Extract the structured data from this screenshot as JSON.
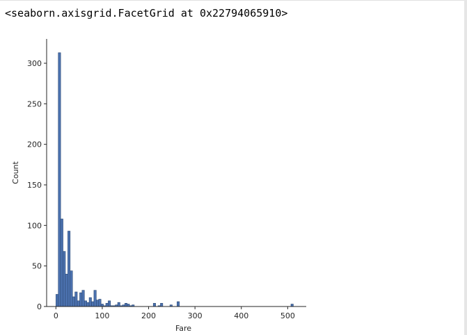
{
  "output": {
    "repr_text": "<seaborn.axisgrid.FacetGrid at 0x22794065910>"
  },
  "colors": {
    "bar_fill": "#4c72b0",
    "bar_edge": "#2d4a73",
    "axis": "#262626"
  },
  "chart_data": {
    "type": "bar",
    "title": "",
    "xlabel": "Fare",
    "ylabel": "Count",
    "xlim": [
      -20,
      540
    ],
    "ylim": [
      0,
      330
    ],
    "xticks": [
      0,
      100,
      200,
      300,
      400,
      500
    ],
    "yticks": [
      0,
      50,
      100,
      150,
      200,
      250,
      300
    ],
    "bin_width": 5.12,
    "grid": false,
    "bins": [
      {
        "x": 0.0,
        "count": 15
      },
      {
        "x": 5.12,
        "count": 313
      },
      {
        "x": 10.25,
        "count": 108
      },
      {
        "x": 15.37,
        "count": 68
      },
      {
        "x": 20.49,
        "count": 40
      },
      {
        "x": 25.62,
        "count": 93
      },
      {
        "x": 30.74,
        "count": 44
      },
      {
        "x": 35.86,
        "count": 12
      },
      {
        "x": 40.99,
        "count": 18
      },
      {
        "x": 46.11,
        "count": 7
      },
      {
        "x": 51.23,
        "count": 17
      },
      {
        "x": 56.36,
        "count": 20
      },
      {
        "x": 61.48,
        "count": 7
      },
      {
        "x": 66.6,
        "count": 5
      },
      {
        "x": 71.73,
        "count": 11
      },
      {
        "x": 76.85,
        "count": 6
      },
      {
        "x": 81.97,
        "count": 20
      },
      {
        "x": 87.1,
        "count": 8
      },
      {
        "x": 92.22,
        "count": 9
      },
      {
        "x": 97.34,
        "count": 3
      },
      {
        "x": 102.47,
        "count": 1
      },
      {
        "x": 107.59,
        "count": 4
      },
      {
        "x": 112.71,
        "count": 7
      },
      {
        "x": 117.84,
        "count": 1
      },
      {
        "x": 122.96,
        "count": 1
      },
      {
        "x": 128.08,
        "count": 2
      },
      {
        "x": 133.21,
        "count": 5
      },
      {
        "x": 138.33,
        "count": 1
      },
      {
        "x": 143.45,
        "count": 2
      },
      {
        "x": 148.58,
        "count": 4
      },
      {
        "x": 153.7,
        "count": 3
      },
      {
        "x": 158.82,
        "count": 1
      },
      {
        "x": 163.95,
        "count": 2
      },
      {
        "x": 210.04,
        "count": 4
      },
      {
        "x": 220.29,
        "count": 1
      },
      {
        "x": 225.41,
        "count": 4
      },
      {
        "x": 245.9,
        "count": 2
      },
      {
        "x": 261.27,
        "count": 6
      },
      {
        "x": 507.0,
        "count": 3
      }
    ]
  }
}
